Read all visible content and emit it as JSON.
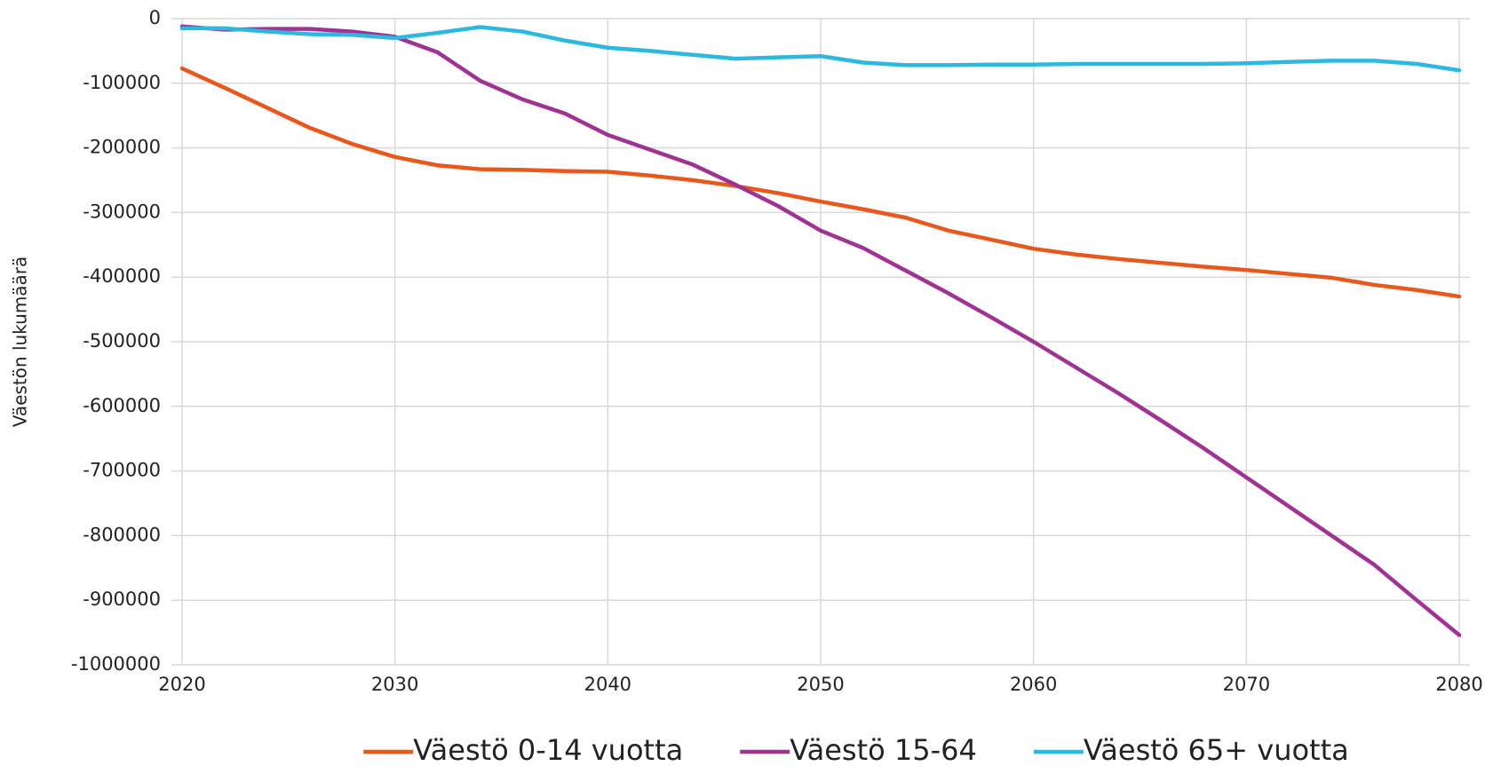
{
  "chart_data": {
    "type": "line",
    "y_label": "Väestön lukumäärä",
    "x": [
      2020,
      2022,
      2024,
      2026,
      2028,
      2030,
      2032,
      2034,
      2036,
      2038,
      2040,
      2042,
      2044,
      2046,
      2048,
      2050,
      2052,
      2054,
      2056,
      2058,
      2060,
      2062,
      2064,
      2066,
      2068,
      2070,
      2072,
      2074,
      2076,
      2078,
      2080
    ],
    "xlim": [
      2019.5,
      2080.5
    ],
    "xticks": [
      2020,
      2030,
      2040,
      2050,
      2060,
      2070,
      2080
    ],
    "ylim": [
      -1000000,
      0
    ],
    "yticks": [
      0,
      -100000,
      -200000,
      -300000,
      -400000,
      -500000,
      -600000,
      -700000,
      -800000,
      -900000,
      -1000000
    ],
    "grid": true,
    "legend": "bottom",
    "series": [
      {
        "name": "Väestö 0-14 vuotta",
        "color": "#e8581c",
        "values": [
          -77000,
          -107000,
          -138000,
          -169000,
          -194000,
          -214000,
          -227000,
          -233000,
          -234000,
          -236000,
          -237000,
          -243000,
          -250000,
          -259000,
          -270000,
          -283000,
          -295000,
          -308000,
          -328000,
          -342000,
          -356000,
          -365000,
          -372000,
          -378000,
          -384000,
          -389000,
          -395000,
          -401000,
          -412000,
          -420000,
          -430000
        ]
      },
      {
        "name": "Väestö 15-64",
        "color": "#9e3393",
        "values": [
          -12000,
          -17000,
          -16000,
          -16000,
          -20000,
          -28000,
          -52000,
          -96000,
          -125000,
          -147000,
          -180000,
          -203000,
          -226000,
          -257000,
          -290000,
          -328000,
          -355000,
          -390000,
          -425000,
          -462000,
          -500000,
          -540000,
          -580000,
          -622000,
          -665000,
          -710000,
          -755000,
          -800000,
          -845000,
          -900000,
          -954000
        ]
      },
      {
        "name": "Väestö 65+ vuotta",
        "color": "#2db8e0",
        "values": [
          -15000,
          -15000,
          -20000,
          -24000,
          -25000,
          -30000,
          -22000,
          -13000,
          -20000,
          -34000,
          -45000,
          -50000,
          -56000,
          -62000,
          -60000,
          -58000,
          -68000,
          -72000,
          -72000,
          -71000,
          -71000,
          -70000,
          -70000,
          -70000,
          -70000,
          -69000,
          -67000,
          -65000,
          -65000,
          -70000,
          -80000
        ]
      }
    ]
  }
}
